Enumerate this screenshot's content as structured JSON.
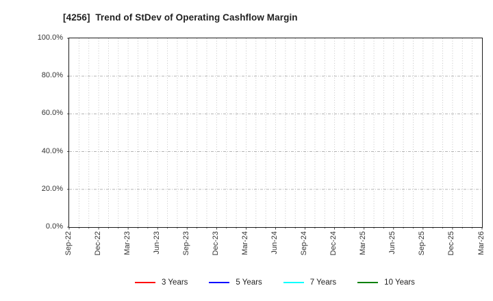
{
  "chart_data": {
    "type": "line",
    "title": "[4256]  Trend of StDev of Operating Cashflow Margin",
    "x_tick_labels": [
      "Sep-22",
      "Dec-22",
      "Mar-23",
      "Jun-23",
      "Sep-23",
      "Dec-23",
      "Mar-24",
      "Jun-24",
      "Sep-24",
      "Dec-24",
      "Mar-25",
      "Jun-25",
      "Sep-25",
      "Dec-25",
      "Mar-26"
    ],
    "x_minor_divisions": 42,
    "y_tick_labels": [
      "0.0%",
      "20.0%",
      "40.0%",
      "60.0%",
      "80.0%",
      "100.0%"
    ],
    "ylim": [
      0,
      100
    ],
    "grid": true,
    "legend_position": "bottom",
    "series": [
      {
        "name": "3 Years",
        "color": "#ff0000",
        "values": []
      },
      {
        "name": "5 Years",
        "color": "#0000ff",
        "values": []
      },
      {
        "name": "7 Years",
        "color": "#00ffff",
        "values": []
      },
      {
        "name": "10 Years",
        "color": "#008000",
        "values": []
      }
    ]
  }
}
